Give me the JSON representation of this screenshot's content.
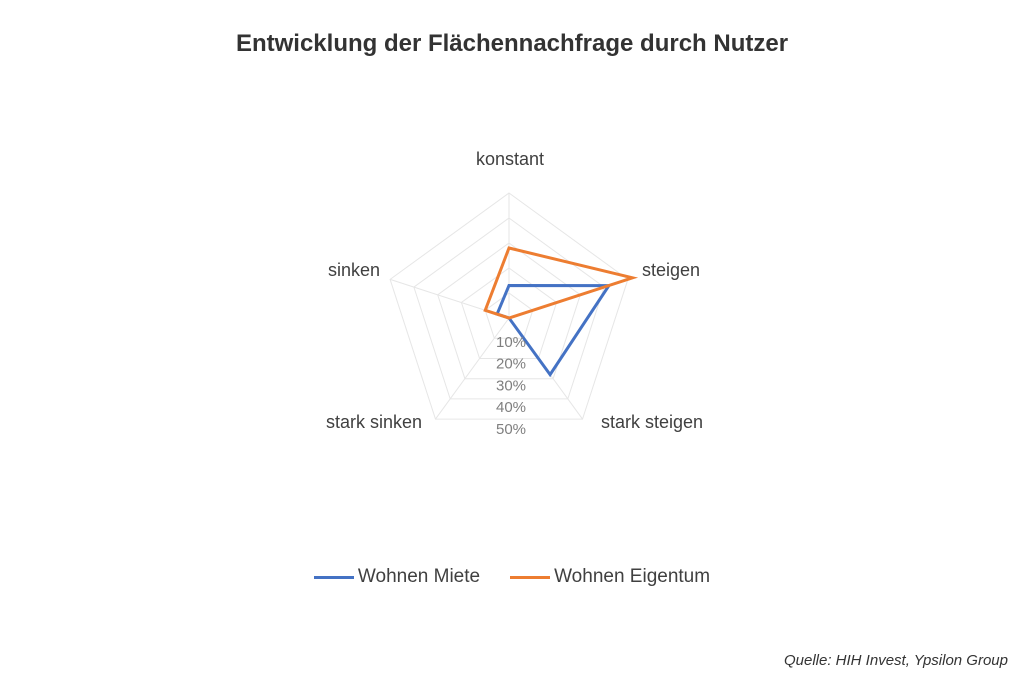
{
  "chart_data": {
    "type": "radar",
    "title": "Entwicklung der Flächennachfrage durch Nutzer",
    "categories": [
      "konstant",
      "steigen",
      "stark steigen",
      "stark sinken",
      "sinken"
    ],
    "ticks": [
      "10%",
      "20%",
      "30%",
      "40%",
      "50%"
    ],
    "rmax": 50,
    "grid": true,
    "legend_position": "bottom",
    "series": [
      {
        "name": "Wohnen Miete",
        "color": "#4472C4",
        "values": [
          13,
          42,
          28,
          0,
          5
        ]
      },
      {
        "name": "Wohnen Eigentum",
        "color": "#ED7D31",
        "values": [
          28,
          52,
          0,
          0,
          10
        ]
      }
    ]
  },
  "source": "Quelle: HIH Invest, Ypsilon Group"
}
